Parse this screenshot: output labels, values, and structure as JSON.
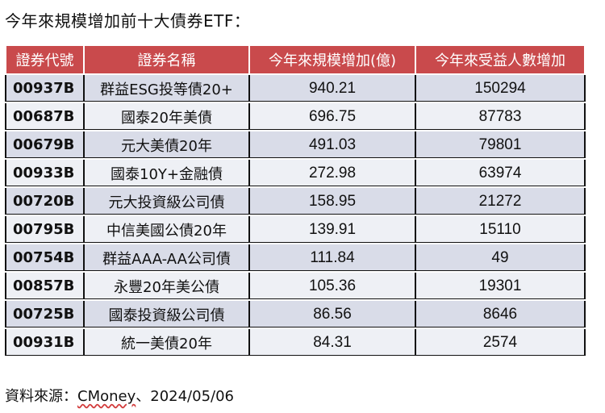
{
  "title": "今年來規模增加前十大債券ETF：",
  "table": {
    "headers": [
      "證券代號",
      "證券名稱",
      "今年來規模增加(億)",
      "今年來受益人數增加"
    ],
    "rows": [
      {
        "code": "00937B",
        "name": "群益ESG投等債20+",
        "scale_increase": "940.21",
        "holders_increase": "150294"
      },
      {
        "code": "00687B",
        "name": "國泰20年美債",
        "scale_increase": "696.75",
        "holders_increase": "87783"
      },
      {
        "code": "00679B",
        "name": "元大美債20年",
        "scale_increase": "491.03",
        "holders_increase": "79801"
      },
      {
        "code": "00933B",
        "name": "國泰10Y+金融債",
        "scale_increase": "272.98",
        "holders_increase": "63974"
      },
      {
        "code": "00720B",
        "name": "元大投資級公司債",
        "scale_increase": "158.95",
        "holders_increase": "21272"
      },
      {
        "code": "00795B",
        "name": "中信美國公債20年",
        "scale_increase": "139.91",
        "holders_increase": "15110"
      },
      {
        "code": "00754B",
        "name": "群益AAA-AA公司債",
        "scale_increase": "111.84",
        "holders_increase": "49"
      },
      {
        "code": "00857B",
        "name": "永豐20年美公債",
        "scale_increase": "105.36",
        "holders_increase": "19301"
      },
      {
        "code": "00725B",
        "name": "國泰投資級公司債",
        "scale_increase": "86.56",
        "holders_increase": "8646"
      },
      {
        "code": "00931B",
        "name": "統一美債20年",
        "scale_increase": "84.31",
        "holders_increase": "2574"
      }
    ]
  },
  "source": {
    "prefix": "資料來源：",
    "brand": "CMoney",
    "suffix": "、2024/05/06"
  },
  "colors": {
    "header_bg": "#c94a4c",
    "row_odd_bg": "#d9dce8",
    "row_even_bg": "#eef0f5"
  }
}
